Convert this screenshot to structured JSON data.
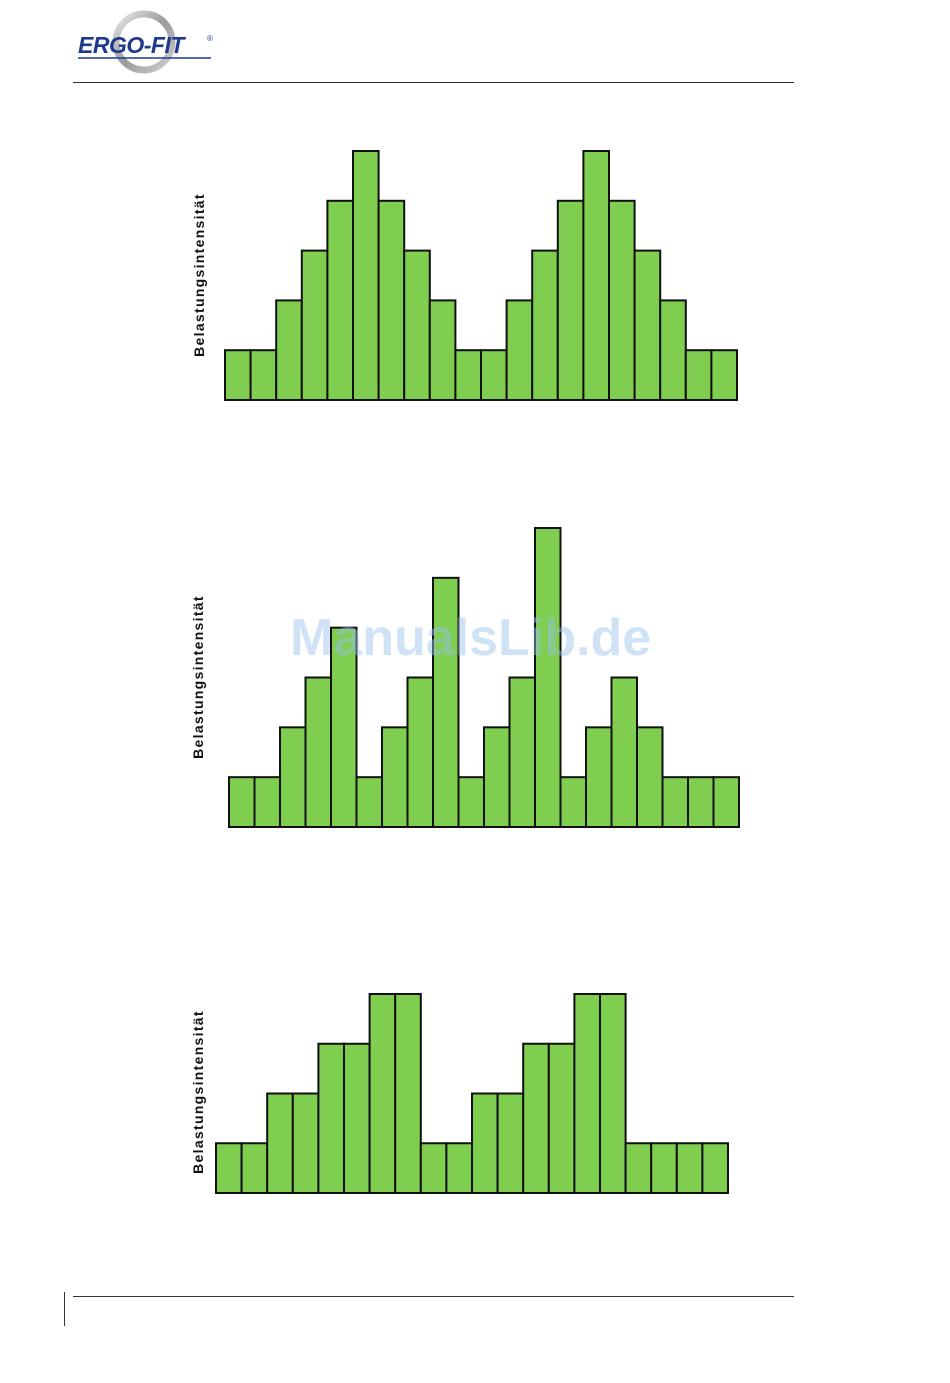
{
  "brand": {
    "logo_text": "ERGO-FIT",
    "registered": "®",
    "color": "#1e3a8f"
  },
  "watermark": "ManualsLib.de",
  "style": {
    "bar_fill": "#7fce50",
    "bar_stroke": "#111111"
  },
  "chart_data": [
    {
      "type": "bar",
      "ylabel": "Belastungsintensität",
      "values": [
        1,
        1,
        2,
        3,
        4,
        5,
        4,
        3,
        2,
        1,
        1,
        2,
        3,
        4,
        5,
        4,
        3,
        2,
        1,
        1
      ],
      "ylim": [
        0,
        5
      ]
    },
    {
      "type": "bar",
      "ylabel": "Belastungsintensität",
      "values": [
        1,
        1,
        2,
        3,
        4,
        1,
        2,
        3,
        5,
        1,
        2,
        3,
        6,
        1,
        2,
        3,
        2,
        1,
        1,
        1
      ],
      "ylim": [
        0,
        6
      ]
    },
    {
      "type": "bar",
      "ylabel": "Belastungsintensität",
      "values": [
        1,
        1,
        2,
        2,
        3,
        3,
        4,
        4,
        1,
        1,
        2,
        2,
        3,
        3,
        4,
        4,
        1,
        1,
        1,
        1
      ],
      "ylim": [
        0,
        4
      ]
    }
  ]
}
